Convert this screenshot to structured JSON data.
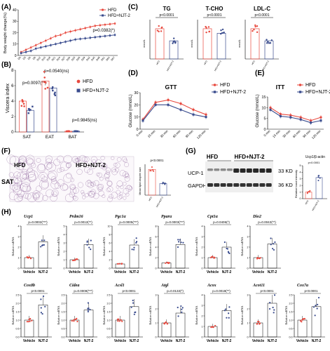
{
  "colors": {
    "hfd": "#e8493e",
    "njt": "#3a4c8e",
    "bar_hfd": "#e8493e",
    "bar_njt": "#3a4c8e",
    "vehicle": "#e8493e",
    "njt2": "#3a4c8e",
    "blot_bg": "#f2f2f2",
    "sat_stain": "#7a4a8a"
  },
  "panel_letters": {
    "a": "(A)",
    "b": "(B)",
    "c": "(C)",
    "d": "(D)",
    "e": "(E)",
    "f": "(F)",
    "g": "(G)",
    "h": "(H)"
  },
  "legend": {
    "hfd": "HFD",
    "njt": "HFD+NJT-2"
  },
  "panelA": {
    "ylabel": "Body weight change(%)",
    "pvalue": "p=0.0382(*)",
    "chart_data": {
      "type": "line",
      "x": [
        "D0",
        "D3",
        "D6",
        "D9",
        "D12",
        "D15",
        "D18",
        "D21",
        "D24",
        "D27",
        "D30",
        "D33",
        "D36",
        "D39",
        "D42",
        "D45",
        "D48",
        "D51",
        "D54",
        "D57"
      ],
      "ylim": [
        0,
        40
      ],
      "yticks": [
        0,
        10,
        20,
        30,
        40
      ],
      "series": [
        {
          "name": "HFD",
          "values": [
            3,
            5,
            7,
            9,
            11,
            13,
            15,
            17,
            18,
            20,
            21,
            22,
            23,
            24,
            25,
            26,
            26.5,
            27,
            27.5,
            28
          ]
        },
        {
          "name": "HFD+NJT-2",
          "values": [
            2,
            3,
            4,
            6,
            7,
            8,
            9,
            10,
            11,
            12,
            13,
            14,
            14.5,
            15,
            15.5,
            16,
            16.5,
            17,
            17.5,
            18
          ]
        }
      ]
    }
  },
  "panelB": {
    "ylabel": "Viscera index",
    "pvalues": [
      "p=0.0097(**)",
      "p=0.0540(ns)",
      "p=0.9845(ns)"
    ],
    "chart_data": {
      "type": "bar",
      "categories": [
        "SAT",
        "EAT",
        "BAT"
      ],
      "ylim": [
        0,
        8
      ],
      "yticks": [
        0,
        2,
        4,
        6,
        8
      ],
      "series": [
        {
          "name": "HFD",
          "values": [
            4.0,
            6.6,
            0.1
          ]
        },
        {
          "name": "HFD+NJT-2",
          "values": [
            2.8,
            5.7,
            0.1
          ]
        }
      ]
    }
  },
  "panelC": [
    {
      "title": "TG",
      "ylabel": "mmol/L",
      "pvalue": "p<0.0001",
      "chart_data": {
        "type": "bar",
        "categories": [
          "HFD",
          "HFD+NJT-2"
        ],
        "values": [
          1.0,
          0.6
        ],
        "ylim": [
          0,
          1.3
        ]
      }
    },
    {
      "title": "T-CHO",
      "ylabel": "mmol/L",
      "pvalue": "p<0.0001",
      "chart_data": {
        "type": "bar",
        "categories": [
          "HFD",
          "HFD+NJT-2"
        ],
        "values": [
          1.0,
          0.85
        ],
        "ylim": [
          0,
          1.3
        ]
      }
    },
    {
      "title": "LDL-C",
      "ylabel": "mmol/L",
      "pvalue": "p<0.0001",
      "chart_data": {
        "type": "bar",
        "categories": [
          "HFD",
          "HFD+NJT-2"
        ],
        "values": [
          1.0,
          0.6
        ],
        "ylim": [
          0,
          1.3
        ]
      }
    }
  ],
  "panelD": {
    "title": "GTT",
    "ylabel": "Glucose (mmol/L)",
    "chart_data": {
      "type": "line",
      "x": [
        "0 min",
        "15 min",
        "30 min",
        "60 min",
        "90 min",
        "120 min"
      ],
      "ylim": [
        0,
        30
      ],
      "yticks": [
        0,
        10,
        20,
        30
      ],
      "series": [
        {
          "name": "HFD",
          "values": [
            8,
            22,
            24,
            21,
            16,
            12
          ]
        },
        {
          "name": "HFD+NJT-2",
          "values": [
            7,
            20,
            20,
            16,
            12,
            10
          ]
        }
      ]
    }
  },
  "panelE": {
    "title": "ITT",
    "ylabel": "Glucose (mmol/L)",
    "chart_data": {
      "type": "line",
      "x": [
        "0 min",
        "15 min",
        "30 min",
        "60 min",
        "90 min",
        "120 min"
      ],
      "ylim": [
        0,
        15
      ],
      "yticks": [
        0,
        5,
        10,
        15
      ],
      "series": [
        {
          "name": "HFD",
          "values": [
            10,
            7,
            6.5,
            5.5,
            4,
            5.5
          ]
        },
        {
          "name": "HFD+NJT-2",
          "values": [
            9,
            6,
            5.5,
            4.5,
            3,
            4
          ]
        }
      ]
    }
  },
  "panelF": {
    "label_hfd": "HFD",
    "label_njt": "HFD+NJT-2",
    "tissue": "SAT",
    "ylabel": "Mean lipid droplet size",
    "pvalue": "p<0.0001",
    "chart_data": {
      "type": "bar",
      "categories": [
        "HFD",
        "HFD+NJT-2"
      ],
      "values": [
        1.0,
        0.45
      ],
      "ylim": [
        0,
        1.2
      ]
    }
  },
  "panelG": {
    "group_hfd": "HFD",
    "group_njt": "HFD+NJT-2",
    "rows": [
      {
        "protein": "UCP-1",
        "kd": "33 KD"
      },
      {
        "protein": "GAPDH",
        "kd": "36 KD"
      }
    ],
    "quant_title": "Ucp1/β-actin",
    "quant_ylabel": "Relative band intensity",
    "pvalue": "p<0.0001",
    "chart_data": {
      "type": "bar",
      "categories": [
        "HFD",
        "HFD+NJT-2"
      ],
      "values": [
        1.0,
        3.2
      ],
      "ylim": [
        0,
        5
      ],
      "yticks": [
        0,
        1,
        2,
        3,
        4,
        5
      ]
    }
  },
  "panelH": {
    "ylabel": "Relative mRNA",
    "categories": [
      "Vehicle",
      "NJT-2"
    ],
    "genes": [
      {
        "gene": "Ucp1",
        "pvalue": "p=0.0002(***)",
        "chart_data": {
          "type": "bar",
          "categories": [
            "Vehicle",
            "NJT-2"
          ],
          "values": [
            1.0,
            2.5
          ],
          "ylim": [
            0,
            4
          ],
          "yticks": [
            0,
            1,
            2,
            3,
            4
          ]
        }
      },
      {
        "gene": "Prdm16",
        "pvalue": "p=0.0012(**)",
        "chart_data": {
          "type": "bar",
          "categories": [
            "Vehicle",
            "NJT-2"
          ],
          "values": [
            1.0,
            2.8
          ],
          "ylim": [
            0,
            5
          ],
          "yticks": [
            0,
            1,
            2,
            3,
            4,
            5
          ]
        }
      },
      {
        "gene": "Pgc1α",
        "pvalue": "p=0.0005(***)",
        "chart_data": {
          "type": "bar",
          "categories": [
            "Vehicle",
            "NJT-2"
          ],
          "values": [
            1.0,
            5.5
          ],
          "ylim": [
            0,
            10
          ],
          "yticks": [
            0,
            2,
            4,
            6,
            8,
            10
          ]
        }
      },
      {
        "gene": "Pparα",
        "pvalue": "p=0.0003(***)",
        "chart_data": {
          "type": "bar",
          "categories": [
            "Vehicle",
            "NJT-2"
          ],
          "values": [
            1.0,
            4.5
          ],
          "ylim": [
            0,
            8
          ],
          "yticks": [
            0,
            2,
            4,
            6,
            8
          ]
        }
      },
      {
        "gene": "Cpt1α",
        "pvalue": "p=0.0406(*)",
        "chart_data": {
          "type": "bar",
          "categories": [
            "Vehicle",
            "NJT-2"
          ],
          "values": [
            1.0,
            2.0
          ],
          "ylim": [
            0,
            4
          ],
          "yticks": [
            0,
            1,
            2,
            3,
            4
          ]
        }
      },
      {
        "gene": "Dio2",
        "pvalue": "p=0.0042(**)",
        "chart_data": {
          "type": "bar",
          "categories": [
            "Vehicle",
            "NJT-2"
          ],
          "values": [
            1.0,
            2.3
          ],
          "ylim": [
            0,
            4
          ],
          "yticks": [
            0,
            1,
            2,
            3,
            4
          ]
        }
      },
      {
        "gene": "Cox8b",
        "pvalue": "p<0.0001",
        "chart_data": {
          "type": "bar",
          "categories": [
            "Vehicle",
            "NJT-2"
          ],
          "values": [
            1.0,
            1.9
          ],
          "ylim": [
            0,
            2.5
          ],
          "yticks": [
            0.0,
            0.5,
            1.0,
            1.5,
            2.0,
            2.5
          ]
        }
      },
      {
        "gene": "Cidea",
        "pvalue": "p=0.0008(***)",
        "chart_data": {
          "type": "bar",
          "categories": [
            "Vehicle",
            "NJT-2"
          ],
          "values": [
            1.0,
            1.6
          ],
          "ylim": [
            0,
            2.5
          ],
          "yticks": [
            0.0,
            0.5,
            1.0,
            1.5,
            2.0,
            2.5
          ]
        }
      },
      {
        "gene": "Acsl1",
        "pvalue": "p<0.0001",
        "chart_data": {
          "type": "bar",
          "categories": [
            "Vehicle",
            "NJT-2"
          ],
          "values": [
            1.0,
            1.8
          ],
          "ylim": [
            0,
            2.5
          ],
          "yticks": [
            0.0,
            0.5,
            1.0,
            1.5,
            2.0,
            2.5
          ]
        }
      },
      {
        "gene": "Atgl",
        "pvalue": "p=0.0132(*)",
        "chart_data": {
          "type": "bar",
          "categories": [
            "Vehicle",
            "NJT-2"
          ],
          "values": [
            1.0,
            1.7
          ],
          "ylim": [
            0,
            3
          ],
          "yticks": [
            0,
            1,
            2,
            3
          ]
        }
      },
      {
        "gene": "Acox",
        "pvalue": "p=0.0018(**)",
        "chart_data": {
          "type": "bar",
          "categories": [
            "Vehicle",
            "NJT-2"
          ],
          "values": [
            1.0,
            2.5
          ],
          "ylim": [
            0,
            4
          ],
          "yticks": [
            0,
            1,
            2,
            3,
            4
          ]
        }
      },
      {
        "gene": "Acot11",
        "pvalue": "p<0.0001",
        "chart_data": {
          "type": "bar",
          "categories": [
            "Vehicle",
            "NJT-2"
          ],
          "values": [
            1.0,
            2.4
          ],
          "ylim": [
            0,
            3
          ],
          "yticks": [
            0,
            1,
            2,
            3
          ]
        }
      },
      {
        "gene": "Cox7a",
        "pvalue": "p<0.0001",
        "chart_data": {
          "type": "bar",
          "categories": [
            "Vehicle",
            "NJT-2"
          ],
          "values": [
            1.0,
            1.8
          ],
          "ylim": [
            0,
            2.5
          ],
          "yticks": [
            0.0,
            0.5,
            1.0,
            1.5,
            2.0,
            2.5
          ]
        }
      }
    ]
  }
}
